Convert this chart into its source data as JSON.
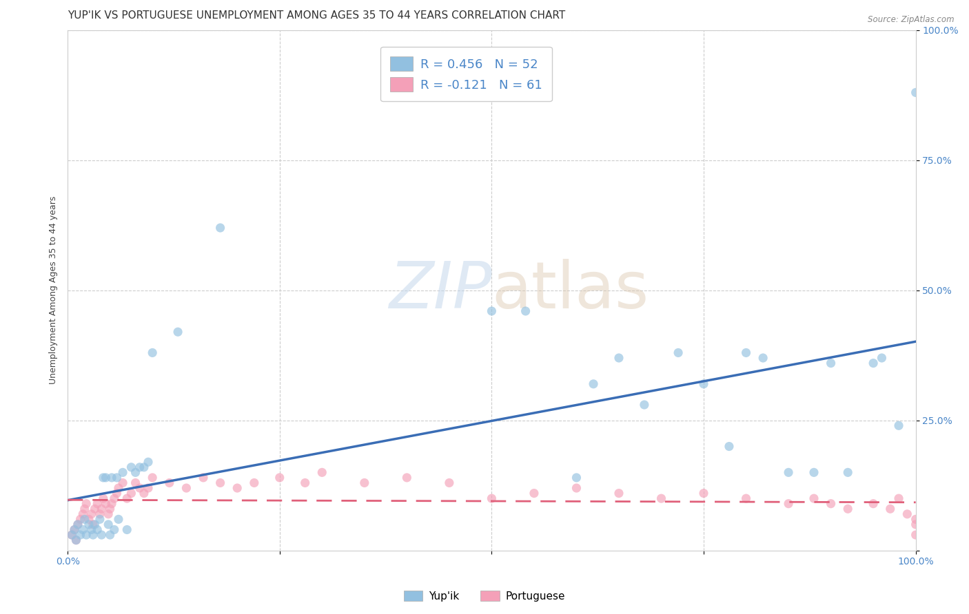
{
  "title": "YUP'IK VS PORTUGUESE UNEMPLOYMENT AMONG AGES 35 TO 44 YEARS CORRELATION CHART",
  "source": "Source: ZipAtlas.com",
  "ylabel": "Unemployment Among Ages 35 to 44 years",
  "xlim": [
    0,
    1
  ],
  "ylim": [
    0,
    1
  ],
  "yupik_color": "#92c0e0",
  "portuguese_color": "#f4a0b8",
  "yupik_line_color": "#3a6db5",
  "portuguese_line_color": "#e0607a",
  "watermark_zip": "ZIP",
  "watermark_atlas": "atlas",
  "background_color": "#ffffff",
  "grid_color": "#cccccc",
  "title_fontsize": 11,
  "tick_fontsize": 10,
  "tick_color": "#4a86c8",
  "yupik_x": [
    0.005,
    0.008,
    0.01,
    0.012,
    0.015,
    0.018,
    0.02,
    0.022,
    0.025,
    0.028,
    0.03,
    0.032,
    0.035,
    0.038,
    0.04,
    0.042,
    0.045,
    0.048,
    0.05,
    0.052,
    0.055,
    0.058,
    0.06,
    0.065,
    0.07,
    0.075,
    0.08,
    0.085,
    0.09,
    0.095,
    0.1,
    0.13,
    0.18,
    0.5,
    0.54,
    0.6,
    0.62,
    0.65,
    0.68,
    0.72,
    0.75,
    0.78,
    0.8,
    0.82,
    0.85,
    0.88,
    0.9,
    0.92,
    0.95,
    0.96,
    0.98,
    1.0
  ],
  "yupik_y": [
    0.03,
    0.04,
    0.02,
    0.05,
    0.03,
    0.04,
    0.06,
    0.03,
    0.05,
    0.04,
    0.03,
    0.05,
    0.04,
    0.06,
    0.03,
    0.14,
    0.14,
    0.05,
    0.03,
    0.14,
    0.04,
    0.14,
    0.06,
    0.15,
    0.04,
    0.16,
    0.15,
    0.16,
    0.16,
    0.17,
    0.38,
    0.42,
    0.62,
    0.46,
    0.46,
    0.14,
    0.32,
    0.37,
    0.28,
    0.38,
    0.32,
    0.2,
    0.38,
    0.37,
    0.15,
    0.15,
    0.36,
    0.15,
    0.36,
    0.37,
    0.24,
    0.88
  ],
  "portuguese_x": [
    0.005,
    0.008,
    0.01,
    0.012,
    0.015,
    0.018,
    0.02,
    0.022,
    0.025,
    0.028,
    0.03,
    0.032,
    0.035,
    0.038,
    0.04,
    0.042,
    0.045,
    0.048,
    0.05,
    0.052,
    0.055,
    0.058,
    0.06,
    0.065,
    0.07,
    0.075,
    0.08,
    0.085,
    0.09,
    0.095,
    0.1,
    0.12,
    0.14,
    0.16,
    0.18,
    0.2,
    0.22,
    0.25,
    0.28,
    0.3,
    0.35,
    0.4,
    0.45,
    0.5,
    0.55,
    0.6,
    0.65,
    0.7,
    0.75,
    0.8,
    0.85,
    0.88,
    0.9,
    0.92,
    0.95,
    0.97,
    0.98,
    0.99,
    1.0,
    1.0,
    1.0
  ],
  "portuguese_y": [
    0.03,
    0.04,
    0.02,
    0.05,
    0.06,
    0.07,
    0.08,
    0.09,
    0.06,
    0.07,
    0.05,
    0.08,
    0.09,
    0.07,
    0.08,
    0.1,
    0.09,
    0.07,
    0.08,
    0.09,
    0.1,
    0.11,
    0.12,
    0.13,
    0.1,
    0.11,
    0.13,
    0.12,
    0.11,
    0.12,
    0.14,
    0.13,
    0.12,
    0.14,
    0.13,
    0.12,
    0.13,
    0.14,
    0.13,
    0.15,
    0.13,
    0.14,
    0.13,
    0.1,
    0.11,
    0.12,
    0.11,
    0.1,
    0.11,
    0.1,
    0.09,
    0.1,
    0.09,
    0.08,
    0.09,
    0.08,
    0.1,
    0.07,
    0.06,
    0.05,
    0.03
  ]
}
